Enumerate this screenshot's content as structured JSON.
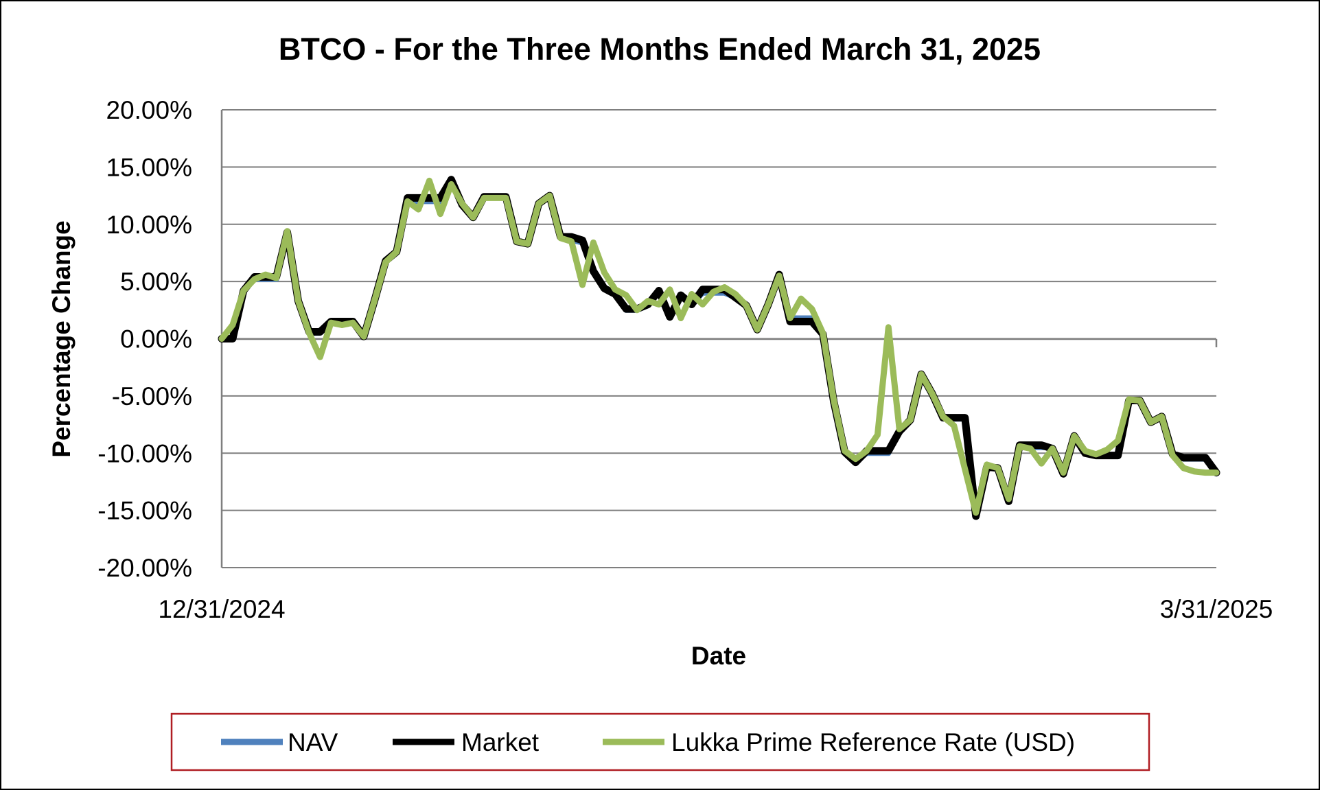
{
  "chart_data": {
    "type": "line",
    "title": "BTCO - For the Three Months Ended March 31, 2025",
    "xlabel": "Date",
    "ylabel": "Percentage Change",
    "x_tick_labels": [
      "12/31/2024",
      "3/31/2025"
    ],
    "y_tick_labels": [
      "20.00%",
      "15.00%",
      "10.00%",
      "5.00%",
      "0.00%",
      "-5.00%",
      "-10.00%",
      "-15.00%",
      "-20.00%"
    ],
    "ylim": [
      -20,
      20
    ],
    "grid": "horizontal",
    "legend_position": "bottom",
    "colors": {
      "nav": "#4f81bd",
      "market": "#000000",
      "lukka": "#9bbb59",
      "legend_border": "#b01e23",
      "grid": "#7f7f7f"
    },
    "series": [
      {
        "name": "NAV",
        "values": [
          0.0,
          0.0,
          4.2,
          5.2,
          5.2,
          5.2,
          9.3,
          3.3,
          0.5,
          0.5,
          1.4,
          1.4,
          1.4,
          0.2,
          3.4,
          6.8,
          7.6,
          12.0,
          12.0,
          12.0,
          12.0,
          13.7,
          11.6,
          10.6,
          12.3,
          12.3,
          12.3,
          8.5,
          8.3,
          11.8,
          12.5,
          8.9,
          8.6,
          8.4,
          5.8,
          4.4,
          3.9,
          2.5,
          2.5,
          2.9,
          4.2,
          1.9,
          3.8,
          3.0,
          4.0,
          4.0,
          4.0,
          3.6,
          2.9,
          0.8,
          3.0,
          5.5,
          1.8,
          1.8,
          1.8,
          0.5,
          -5.4,
          -10.0,
          -10.8,
          -10.0,
          -10.0,
          -10.0,
          -8.1,
          -7.2,
          -3.1,
          -4.8,
          -6.8,
          -7.0,
          -7.0,
          -15.2,
          -11.0,
          -11.3,
          -14.0,
          -9.4,
          -9.5,
          -9.5,
          -9.5,
          -11.7,
          -8.5,
          -10.0,
          -10.2,
          -10.2,
          -10.2,
          -5.3,
          -5.4,
          -7.3,
          -6.8,
          -10.1,
          -10.5,
          -10.5,
          -10.5,
          -11.8
        ]
      },
      {
        "name": "Market",
        "values": [
          0.0,
          0.0,
          4.2,
          5.4,
          5.4,
          5.4,
          9.3,
          3.3,
          0.6,
          0.6,
          1.5,
          1.5,
          1.5,
          0.2,
          3.4,
          6.8,
          7.6,
          12.3,
          12.3,
          12.3,
          12.3,
          13.9,
          11.7,
          10.6,
          12.4,
          12.4,
          12.4,
          8.5,
          8.3,
          11.8,
          12.5,
          8.9,
          8.9,
          8.6,
          5.9,
          4.4,
          3.9,
          2.6,
          2.6,
          3.0,
          4.2,
          1.9,
          3.8,
          3.0,
          4.3,
          4.3,
          4.3,
          3.6,
          2.9,
          0.8,
          3.0,
          5.6,
          1.5,
          1.5,
          1.5,
          0.4,
          -5.5,
          -9.9,
          -10.8,
          -9.8,
          -9.8,
          -9.8,
          -8.1,
          -7.1,
          -3.1,
          -4.8,
          -6.9,
          -6.9,
          -6.9,
          -15.5,
          -11.2,
          -11.3,
          -14.2,
          -9.3,
          -9.3,
          -9.3,
          -9.6,
          -11.8,
          -8.5,
          -10.0,
          -10.2,
          -10.2,
          -10.2,
          -5.4,
          -5.4,
          -7.3,
          -6.8,
          -10.1,
          -10.4,
          -10.4,
          -10.4,
          -11.7
        ]
      },
      {
        "name": "Lukka Prime Reference Rate (USD)",
        "values": [
          0.0,
          1.2,
          4.2,
          5.2,
          5.6,
          5.3,
          9.4,
          3.3,
          0.5,
          -1.6,
          1.4,
          1.2,
          1.4,
          0.2,
          3.4,
          6.7,
          7.6,
          12.0,
          11.3,
          13.8,
          10.9,
          13.5,
          11.8,
          10.6,
          12.3,
          12.3,
          12.3,
          8.5,
          8.3,
          11.8,
          12.5,
          8.8,
          8.5,
          4.7,
          8.4,
          5.8,
          4.3,
          3.8,
          2.5,
          3.3,
          3.0,
          4.3,
          1.8,
          3.9,
          3.0,
          4.1,
          4.5,
          3.9,
          2.9,
          0.8,
          3.0,
          5.5,
          1.8,
          3.5,
          2.6,
          0.5,
          -5.4,
          -9.8,
          -10.5,
          -9.8,
          -8.4,
          1.0,
          -7.9,
          -7.1,
          -3.1,
          -4.8,
          -6.8,
          -7.6,
          -11.4,
          -15.2,
          -11.0,
          -11.3,
          -14.0,
          -9.4,
          -9.6,
          -10.9,
          -9.6,
          -11.7,
          -8.5,
          -9.8,
          -10.1,
          -9.7,
          -8.9,
          -5.3,
          -5.4,
          -7.3,
          -6.8,
          -10.2,
          -11.3,
          -11.6,
          -11.7,
          -11.7
        ]
      }
    ]
  }
}
